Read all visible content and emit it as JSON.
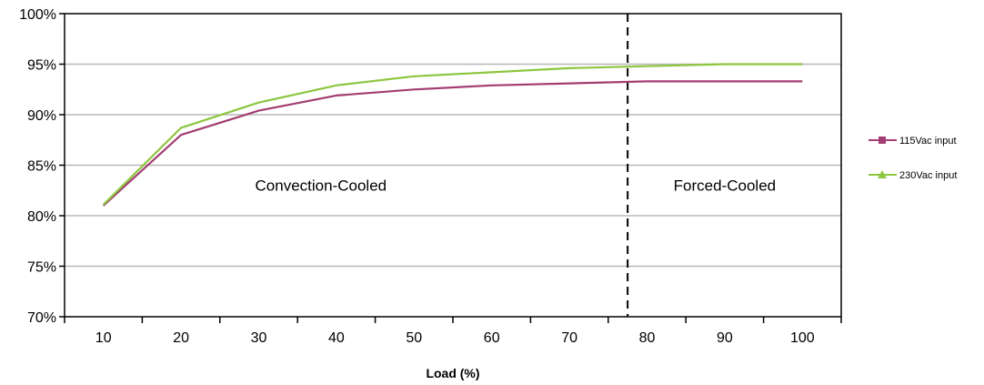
{
  "chart_data": {
    "type": "line",
    "title": "",
    "xlabel": "Load (%)",
    "ylabel": "",
    "x": [
      10,
      20,
      30,
      40,
      50,
      60,
      70,
      80,
      90,
      100
    ],
    "ylim": [
      70,
      100
    ],
    "yticks": [
      70,
      75,
      80,
      85,
      90,
      95,
      100
    ],
    "ytick_labels": [
      "70%",
      "75%",
      "80%",
      "85%",
      "90%",
      "95%",
      "100%"
    ],
    "grid": true,
    "legend_position": "right",
    "series": [
      {
        "name": "115Vac input",
        "color": "#a33d72",
        "marker": "square",
        "values": [
          81.0,
          88.0,
          90.4,
          91.9,
          92.5,
          92.9,
          93.1,
          93.3,
          93.3,
          93.3
        ]
      },
      {
        "name": "230Vac input",
        "color": "#8dc63f",
        "marker": "triangle",
        "values": [
          81.1,
          88.7,
          91.2,
          92.9,
          93.8,
          94.2,
          94.6,
          94.8,
          95.0,
          95.0
        ]
      }
    ],
    "divider": {
      "x": 77.5,
      "style": "dashed"
    },
    "annotations": [
      {
        "text": "Convection-Cooled",
        "x": 38,
        "y": 83
      },
      {
        "text": "Forced-Cooled",
        "x": 90,
        "y": 83
      }
    ]
  }
}
